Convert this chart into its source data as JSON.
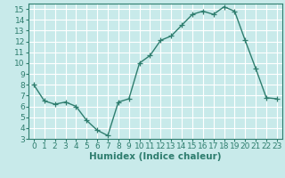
{
  "x": [
    0,
    1,
    2,
    3,
    4,
    5,
    6,
    7,
    8,
    9,
    10,
    11,
    12,
    13,
    14,
    15,
    16,
    17,
    18,
    19,
    20,
    21,
    22,
    23
  ],
  "y": [
    8,
    6.5,
    6.2,
    6.4,
    6.0,
    4.7,
    3.8,
    3.3,
    6.4,
    6.7,
    10.0,
    10.7,
    12.1,
    12.5,
    13.5,
    14.5,
    14.8,
    14.5,
    15.2,
    14.8,
    12.1,
    9.5,
    6.8,
    6.7
  ],
  "line_color": "#2e7d6e",
  "marker": "+",
  "marker_size": 4,
  "linewidth": 1.0,
  "bg_color": "#c8eaea",
  "grid_color": "#ffffff",
  "xlabel": "Humidex (Indice chaleur)",
  "xlim": [
    -0.5,
    23.5
  ],
  "ylim": [
    3,
    15.5
  ],
  "yticks": [
    3,
    4,
    5,
    6,
    7,
    8,
    9,
    10,
    11,
    12,
    13,
    14,
    15
  ],
  "xticks": [
    0,
    1,
    2,
    3,
    4,
    5,
    6,
    7,
    8,
    9,
    10,
    11,
    12,
    13,
    14,
    15,
    16,
    17,
    18,
    19,
    20,
    21,
    22,
    23
  ],
  "tick_fontsize": 6.5,
  "label_fontsize": 7.5
}
